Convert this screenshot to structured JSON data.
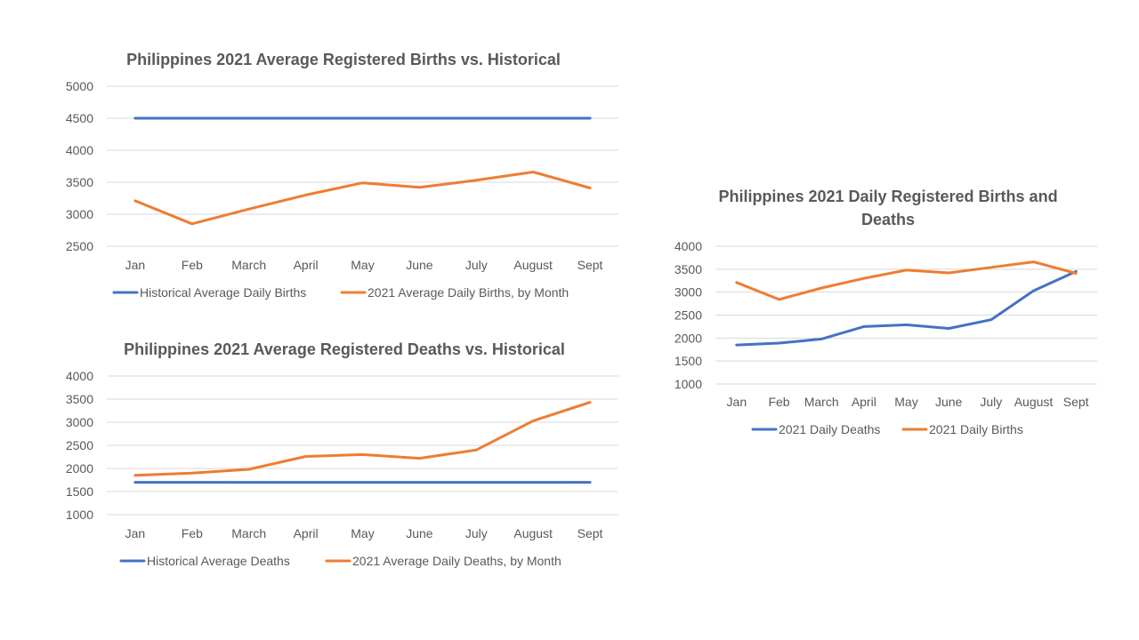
{
  "colors": {
    "blue": "#4472C4",
    "orange": "#ED7D31"
  },
  "chart_data": [
    {
      "type": "line",
      "title": "Philippines  2021 Average Registered Births vs. Historical",
      "title_lines": [
        "Philippines  2021 Average Registered Births vs. Historical"
      ],
      "categories": [
        "Jan",
        "Feb",
        "March",
        "April",
        "May",
        "June",
        "July",
        "August",
        "Sept"
      ],
      "ylim": [
        2500,
        5000
      ],
      "yticks": [
        2500,
        3000,
        3500,
        4000,
        4500,
        5000
      ],
      "grid": true,
      "legend_position": "bottom",
      "series": [
        {
          "name": "Historical Average Daily Births",
          "color": "#4472C4",
          "values": [
            4500,
            4500,
            4500,
            4500,
            4500,
            4500,
            4500,
            4500,
            4500
          ]
        },
        {
          "name": "2021 Average Daily Births, by Month",
          "color": "#ED7D31",
          "values": [
            3210,
            2850,
            3080,
            3300,
            3490,
            3420,
            3530,
            3660,
            3410
          ]
        }
      ]
    },
    {
      "type": "line",
      "title": "Philippines  2021 Average Registered Deaths vs. Historical",
      "title_lines": [
        "Philippines  2021 Average Registered Deaths vs. Historical"
      ],
      "categories": [
        "Jan",
        "Feb",
        "March",
        "April",
        "May",
        "June",
        "July",
        "August",
        "Sept"
      ],
      "ylim": [
        1000,
        4000
      ],
      "yticks": [
        1000,
        1500,
        2000,
        2500,
        3000,
        3500,
        4000
      ],
      "grid": true,
      "legend_position": "bottom",
      "series": [
        {
          "name": "Historical Average Deaths",
          "color": "#4472C4",
          "values": [
            1700,
            1700,
            1700,
            1700,
            1700,
            1700,
            1700,
            1700,
            1700
          ]
        },
        {
          "name": "2021 Average Daily Deaths, by Month",
          "color": "#ED7D31",
          "values": [
            1850,
            1900,
            1980,
            2260,
            2300,
            2220,
            2400,
            3030,
            3430
          ]
        }
      ]
    },
    {
      "type": "line",
      "title": "Philippines  2021 Daily Registered Births and Deaths",
      "title_lines": [
        "Philippines  2021 Daily  Registered Births  and",
        "Deaths"
      ],
      "categories": [
        "Jan",
        "Feb",
        "March",
        "April",
        "May",
        "June",
        "July",
        "August",
        "Sept"
      ],
      "ylim": [
        1000,
        4000
      ],
      "yticks": [
        1000,
        1500,
        2000,
        2500,
        3000,
        3500,
        4000
      ],
      "grid": true,
      "legend_position": "bottom",
      "series": [
        {
          "name": "2021 Daily Deaths",
          "color": "#4472C4",
          "values": [
            1850,
            1890,
            1980,
            2250,
            2290,
            2210,
            2400,
            3030,
            3450
          ]
        },
        {
          "name": "2021 Daily Births",
          "color": "#ED7D31",
          "values": [
            3210,
            2840,
            3090,
            3300,
            3480,
            3420,
            3540,
            3660,
            3410
          ]
        }
      ]
    }
  ]
}
